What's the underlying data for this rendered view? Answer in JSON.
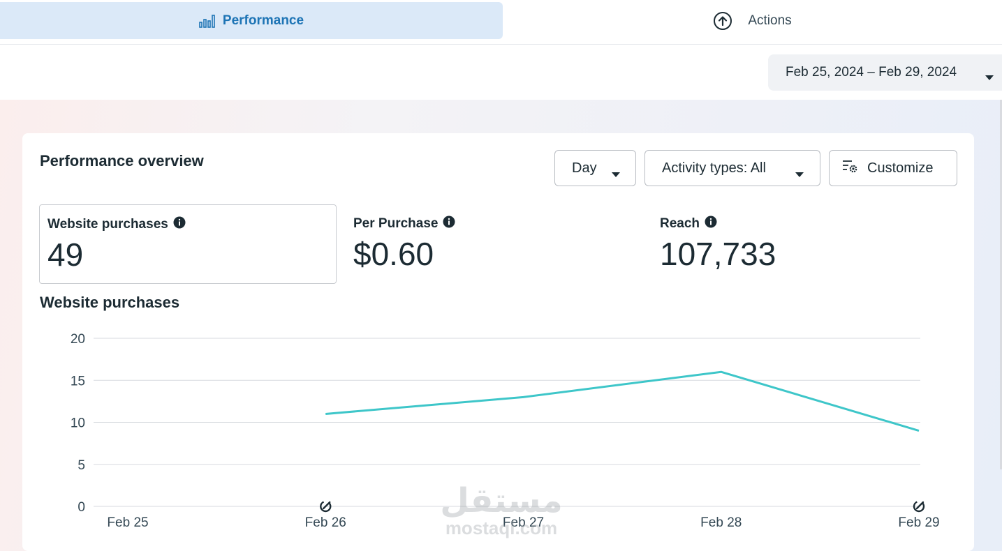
{
  "tabs": [
    {
      "label": "Performance",
      "icon": "bar-chart-icon",
      "active": true
    },
    {
      "label": "Actions",
      "icon": "arrow-up-circle-icon",
      "active": false
    }
  ],
  "date_range": {
    "label": "Feb 25, 2024 – Feb 29, 2024",
    "icon": "caret-down-icon"
  },
  "overview": {
    "title": "Performance overview",
    "buttons": {
      "day": "Day",
      "activity": "Activity types: All",
      "customize": "Customize"
    }
  },
  "metrics": [
    {
      "label": "Website purchases",
      "value": "49",
      "selected": true
    },
    {
      "label": "Per Purchase",
      "value": "$0.60",
      "selected": false
    },
    {
      "label": "Reach",
      "value": "107,733",
      "selected": false
    }
  ],
  "chart_title": "Website purchases",
  "chart_data": {
    "type": "line",
    "categories": [
      "Feb 25",
      "Feb 26",
      "Feb 27",
      "Feb 28",
      "Feb 29"
    ],
    "series": [
      {
        "values": [
          null,
          11,
          13,
          16,
          9
        ],
        "color": "#3ec6c9"
      }
    ],
    "y_ticks": [
      0,
      5,
      10,
      15,
      20
    ],
    "ylim": [
      0,
      20
    ],
    "grid": true,
    "markers": [
      {
        "category": "Feb 26",
        "icon": "edit-indicator-icon"
      },
      {
        "category": "Feb 29",
        "icon": "edit-indicator-icon"
      }
    ]
  },
  "watermark": {
    "arabic": "مستقل",
    "latin": "mostaql.com"
  },
  "colors": {
    "accent": "#1d74b5",
    "active_tab_bg": "#dbe9f8",
    "line": "#3ec6c9"
  }
}
